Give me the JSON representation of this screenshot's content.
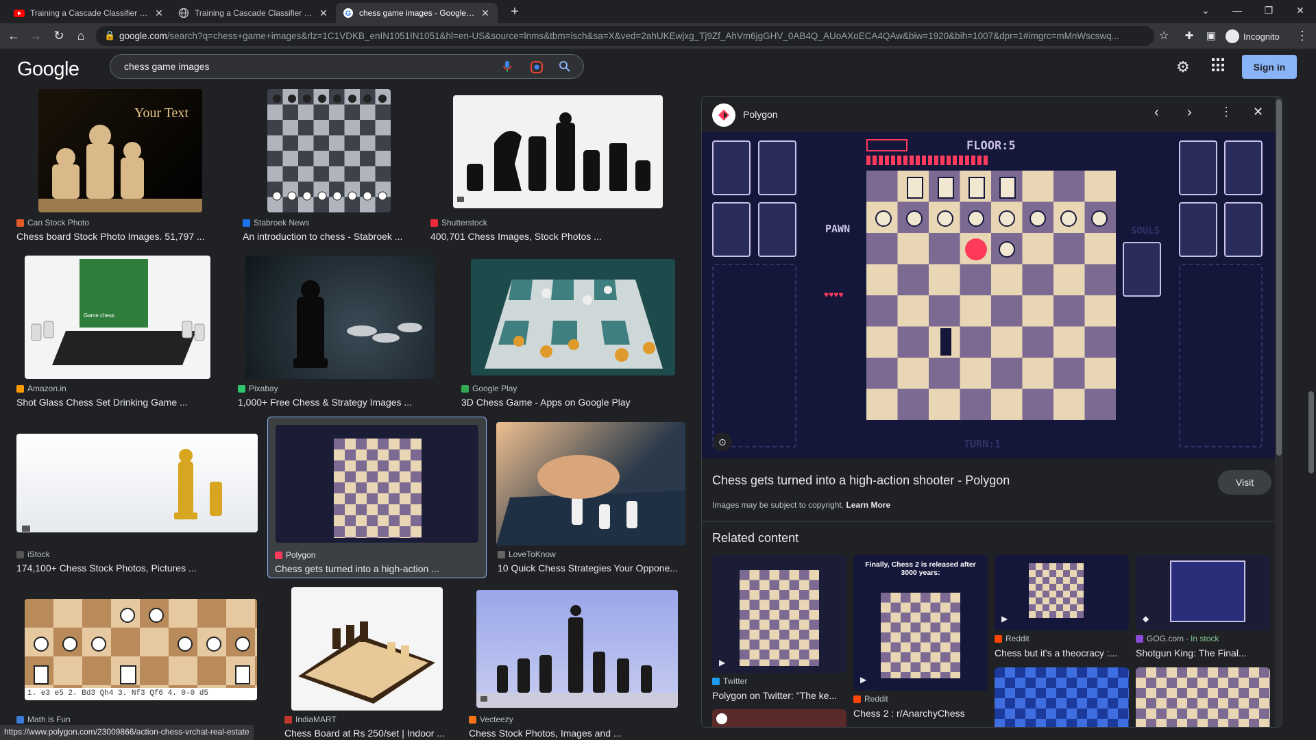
{
  "browser": {
    "tabs": [
      {
        "title": "Training a Cascade Classifier - Op",
        "favicon": "youtube-favicon"
      },
      {
        "title": "Training a Cascade Classifier - Le",
        "favicon": "globe-favicon"
      },
      {
        "title": "chess game images - Google Sea",
        "favicon": "google-favicon"
      }
    ],
    "url_main": "google.com",
    "url_rest": "/search?q=chess+game+images&rlz=1C1VDKB_enIN1051IN1051&hl=en-US&source=lnms&tbm=isch&sa=X&ved=2ahUKEwjxg_Tj9Zf_AhVm6jgGHV_0AB4Q_AUoAXoECA4QAw&biw=1920&bih=1007&dpr=1#imgrc=mMnWscswq...",
    "profile": "Incognito",
    "status_url": "https://www.polygon.com/23009866/action-chess-vrchat-real-estate"
  },
  "google": {
    "logo": "Google",
    "query": "chess game images",
    "signin": "Sign in"
  },
  "results": [
    {
      "source": "Can Stock Photo",
      "caption": "Chess board Stock Photo Images. 51,797 ...",
      "thumb_text": "Your Text",
      "color": "#e05a2b"
    },
    {
      "source": "Stabroek News",
      "caption": "An introduction to chess - Stabroek ...",
      "color": "#1a73e8"
    },
    {
      "source": "Shutterstock",
      "caption": "400,701 Chess Images, Stock Photos ...",
      "color": "#ee2b3b"
    },
    {
      "source": "Amazon.in",
      "caption": "Shot Glass Chess Set Drinking Game ...",
      "thumb_text": "Game chess",
      "color": "#ff9900"
    },
    {
      "source": "Pixabay",
      "caption": "1,000+ Free Chess & Strategy Images ...",
      "color": "#2ec66d"
    },
    {
      "source": "Google Play",
      "caption": "3D Chess Game - Apps on Google Play",
      "color": "#34a853"
    },
    {
      "source": "iStock",
      "caption": "174,100+ Chess Stock Photos, Pictures ...",
      "color": "#555555"
    },
    {
      "source": "Polygon",
      "caption": "Chess gets turned into a high-action ...",
      "color": "#ff3b5c"
    },
    {
      "source": "LoveToKnow",
      "caption": "10 Quick Chess Strategies Your Oppone...",
      "color": "#666666"
    },
    {
      "source": "Math is Fun",
      "caption": "1. e3 e5  2. Bd3 Qh4  3. Nf3 Qf6  4. 0-0 d5",
      "color": "#3d7bd9"
    },
    {
      "source": "IndiaMART",
      "caption": "Chess Board at Rs 250/set | Indoor ...",
      "color": "#c0392b"
    },
    {
      "source": "Vecteezy",
      "caption": "Chess Stock Photos, Images and ...",
      "color": "#f97316"
    }
  ],
  "panel": {
    "site": "Polygon",
    "title": "Chess gets turned into a high-action shooter - Polygon",
    "visit": "Visit",
    "copyright": "Images may be subject to copyright.",
    "learn_more": "Learn More",
    "game": {
      "floor": "FLOOR:5",
      "pawn": "PAWN",
      "souls": "SOULS",
      "turn": "TURN:1"
    },
    "related_heading": "Related content",
    "related": [
      {
        "source": "Twitter",
        "caption": "Polygon on Twitter: \"The ke...",
        "color": "#1d9bf0"
      },
      {
        "source": "Reddit",
        "caption": "Chess 2 : r/AnarchyChess",
        "overlay": "Finally, Chess 2 is released after 3000 years:",
        "color": "#ff4500"
      },
      {
        "source": "Reddit",
        "caption": "Chess but it's a theocracy :...",
        "color": "#ff4500"
      },
      {
        "source": "GOG.com",
        "stock": "In stock",
        "caption": "Shotgun King: The Final...",
        "color": "#8a4bd6"
      }
    ]
  }
}
